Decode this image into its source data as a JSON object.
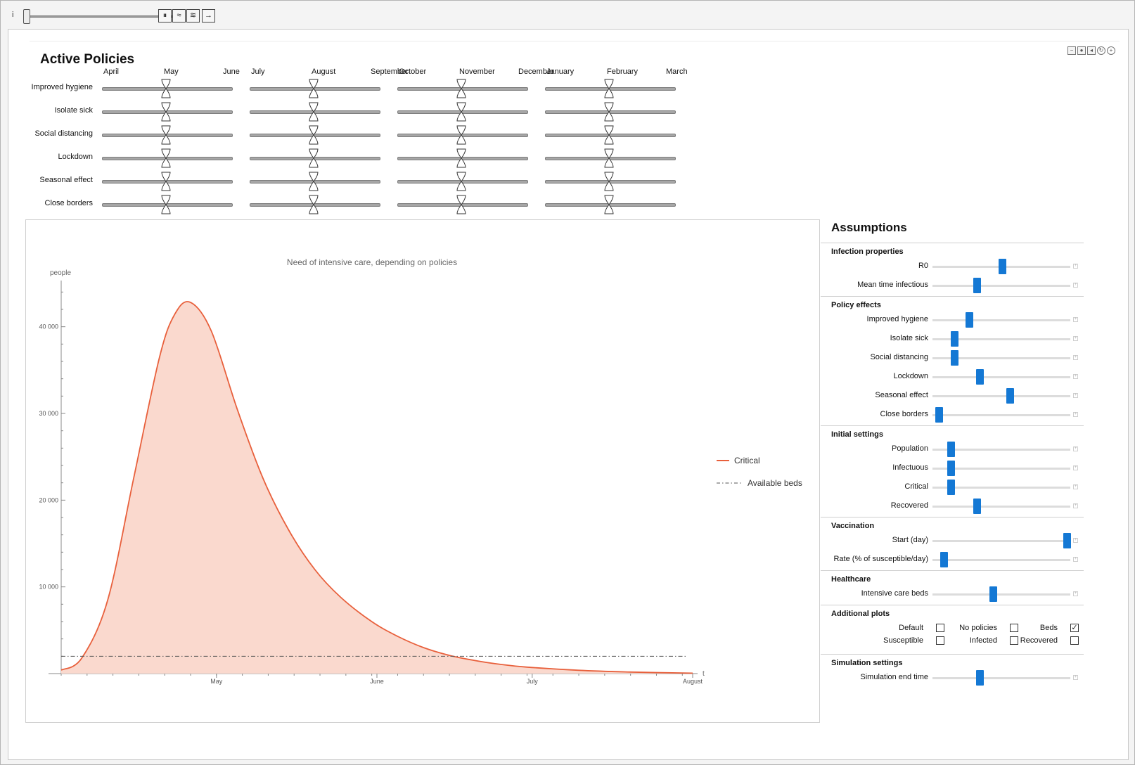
{
  "animator": {
    "index_label": "i",
    "pause_glyph": "⏸",
    "faster_glyph": "≈",
    "slower_glyph": "≋",
    "direction_glyph": "→"
  },
  "active_policies": {
    "title": "Active Policies",
    "months": [
      "April",
      "May",
      "June",
      "July",
      "August",
      "September",
      "October",
      "November",
      "December",
      "January",
      "February",
      "March"
    ],
    "policies": [
      "Improved hygiene",
      "Isolate sick",
      "Social distancing",
      "Lockdown",
      "Seasonal effect",
      "Close borders"
    ]
  },
  "chart_data": {
    "type": "area",
    "title": "Need of intensive care, depending on policies",
    "ylabel": "people",
    "xlabel": "t",
    "x_tick_labels": [
      "May",
      "June",
      "July",
      "August"
    ],
    "y_ticks": [
      10000,
      20000,
      30000,
      40000
    ],
    "y_tick_labels": [
      "10 000",
      "20 000",
      "30 000",
      "40 000"
    ],
    "ylim": [
      0,
      45000
    ],
    "legend_position": "right",
    "series": [
      {
        "name": "Critical",
        "color": "#e8603c",
        "fill": "#fad9ce",
        "x": [
          "Apr 1",
          "Apr 5",
          "Apr 10",
          "Apr 15",
          "Apr 20",
          "Apr 23",
          "Apr 26",
          "Apr 30",
          "May 5",
          "May 10",
          "May 15",
          "May 20",
          "May 25",
          "May 31",
          "Jun 5",
          "Jun 10",
          "Jun 15",
          "Jun 20",
          "Jun 25",
          "Jun 30",
          "Jul 10",
          "Jul 20",
          "Aug 1"
        ],
        "values": [
          400,
          1800,
          8500,
          22500,
          36500,
          41500,
          42800,
          39500,
          30500,
          22500,
          16500,
          12000,
          8800,
          6000,
          4300,
          3000,
          2100,
          1500,
          1050,
          750,
          380,
          180,
          50
        ]
      },
      {
        "name": "Available beds",
        "color": "#555555",
        "style": "dash-dot",
        "x": [
          "Apr 1",
          "Aug 1"
        ],
        "values": [
          2000,
          2000
        ]
      }
    ]
  },
  "assumptions": {
    "title": "Assumptions",
    "sections": [
      {
        "title": "Infection properties",
        "sliders": [
          {
            "label": "R0",
            "value": 0.5
          },
          {
            "label": "Mean time infectious",
            "value": 0.31
          }
        ]
      },
      {
        "title": "Policy effects",
        "sliders": [
          {
            "label": "Improved hygiene",
            "value": 0.25
          },
          {
            "label": "Isolate sick",
            "value": 0.14
          },
          {
            "label": "Social distancing",
            "value": 0.14
          },
          {
            "label": "Lockdown",
            "value": 0.33
          },
          {
            "label": "Seasonal effect",
            "value": 0.56
          },
          {
            "label": "Close borders",
            "value": 0.02
          }
        ]
      },
      {
        "title": "Initial settings",
        "sliders": [
          {
            "label": "Population",
            "value": 0.11
          },
          {
            "label": "Infectuous",
            "value": 0.11
          },
          {
            "label": "Critical",
            "value": 0.11
          },
          {
            "label": "Recovered",
            "value": 0.31
          }
        ]
      },
      {
        "title": "Vaccination",
        "sliders": [
          {
            "label": "Start (day)",
            "value": 0.99
          },
          {
            "label": "Rate (% of susceptible/day)",
            "value": 0.06
          }
        ]
      },
      {
        "title": "Healthcare",
        "sliders": [
          {
            "label": "Intensive care beds",
            "value": 0.43
          }
        ]
      },
      {
        "title": "Additional plots",
        "checkboxes": [
          {
            "label": "Default",
            "checked": false
          },
          {
            "label": "No policies",
            "checked": false
          },
          {
            "label": "Beds",
            "checked": true
          },
          {
            "label": "Susceptible",
            "checked": false
          },
          {
            "label": "Infected",
            "checked": false
          },
          {
            "label": "Recovered",
            "checked": false
          }
        ]
      },
      {
        "title": "Simulation settings",
        "sliders": [
          {
            "label": "Simulation end time",
            "value": 0.33
          }
        ]
      }
    ]
  }
}
